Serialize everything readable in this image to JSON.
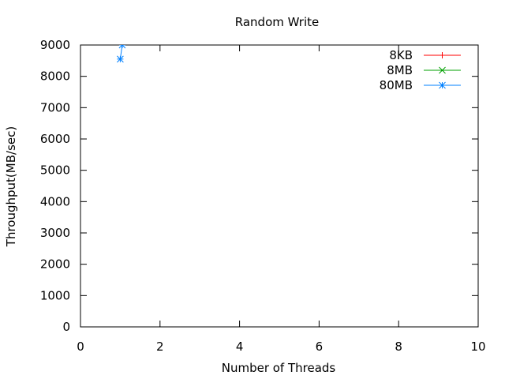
{
  "chart_data": {
    "type": "line",
    "title": "Random Write",
    "xlabel": "Number of Threads",
    "ylabel": "Throughput(MB/sec)",
    "xlim": [
      0,
      10
    ],
    "ylim": [
      0,
      9000
    ],
    "x_ticks": [
      "0",
      "2",
      "4",
      "6",
      "8",
      "10"
    ],
    "y_ticks": [
      "0",
      "1000",
      "2000",
      "3000",
      "4000",
      "5000",
      "6000",
      "7000",
      "8000",
      "9000"
    ],
    "grid": false,
    "legend_position": "top-right",
    "series": [
      {
        "name": "8KB",
        "color": "#ff0000",
        "marker": "plus",
        "x": [],
        "y": []
      },
      {
        "name": "8MB",
        "color": "#00a000",
        "marker": "cross",
        "x": [],
        "y": []
      },
      {
        "name": "80MB",
        "color": "#0080ff",
        "marker": "star",
        "x": [
          1,
          1.05
        ],
        "y": [
          8550,
          9000
        ]
      }
    ]
  }
}
